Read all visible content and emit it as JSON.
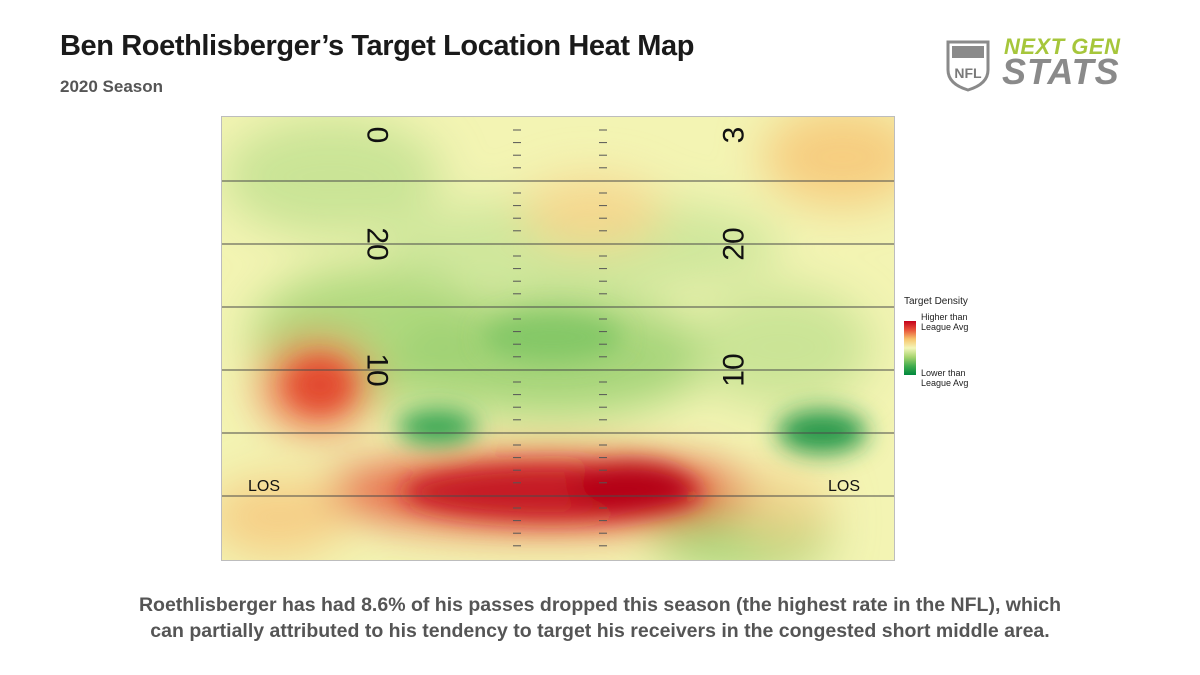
{
  "header": {
    "title": "Ben Roethlisberger’s Target Location Heat Map",
    "subtitle": "2020 Season"
  },
  "logo": {
    "line1": "NEXT GEN",
    "line2": "STATS",
    "shield": "NFL"
  },
  "chart_data": {
    "type": "heatmap",
    "title": "Ben Roethlisberger’s Target Location Heat Map",
    "subtitle": "2020 Season",
    "yard_numbers_left": [
      "0",
      "20",
      "10"
    ],
    "yard_numbers_right": [
      "3",
      "20",
      "10"
    ],
    "los_label": "LOS",
    "legend": {
      "title": "Target Density",
      "high": "Higher than League Avg",
      "low": "Lower than League Avg"
    },
    "colors": {
      "high": "#c4001c",
      "neutral": "#f4f6b8",
      "low": "#00883e"
    },
    "hotspots": [
      {
        "zone": "short middle (behind and at LOS)",
        "density": "much higher than league avg"
      },
      {
        "zone": "short left, ~10 yards",
        "density": "higher than league avg"
      },
      {
        "zone": "deep right, ~30 yards",
        "density": "slightly higher than league avg"
      },
      {
        "zone": "short right, ~5 yards",
        "density": "lower than league avg"
      },
      {
        "zone": "short left inside, ~5 yards",
        "density": "lower than league avg"
      }
    ]
  },
  "caption": {
    "line1": "Roethlisberger has had 8.6% of his passes dropped this season (the highest rate in the NFL), which",
    "line2": "can partially attributed to his tendency to target his receivers in the congested short middle area."
  }
}
